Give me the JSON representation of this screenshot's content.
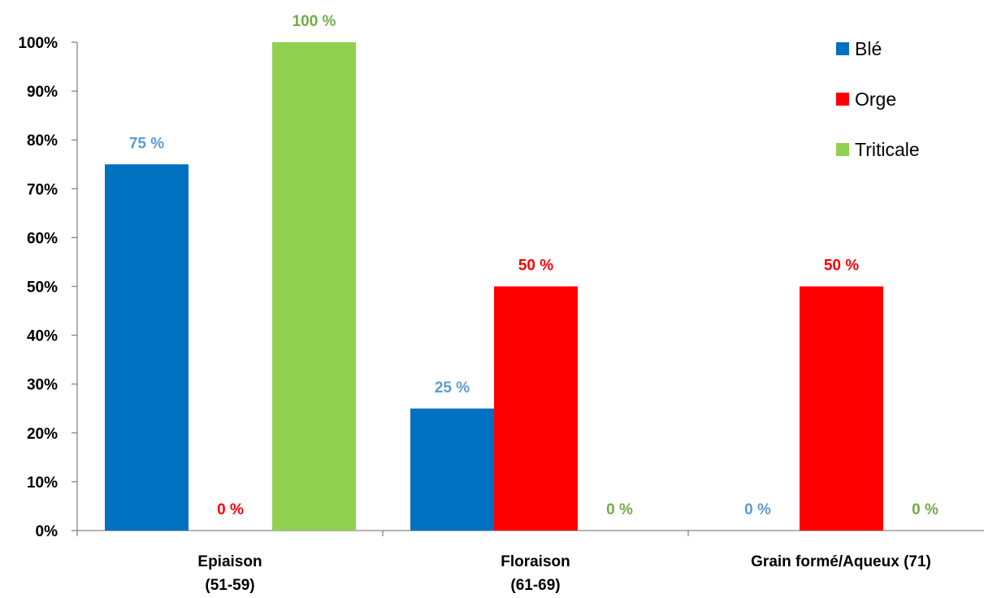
{
  "chart_data": {
    "type": "bar",
    "categories": [
      [
        "Epiaison",
        "(51-59)"
      ],
      [
        "Floraison",
        "(61-69)"
      ],
      [
        "Grain formé/Aqueux (71)"
      ]
    ],
    "series": [
      {
        "name": "Blé",
        "color": "#0070C0",
        "label_color": "#5B9BD5",
        "values": [
          75,
          25,
          0
        ],
        "labels": [
          "75 %",
          "25 %",
          "0 %"
        ]
      },
      {
        "name": "Orge",
        "color": "#FF0000",
        "label_color": "#FF0000",
        "values": [
          0,
          50,
          50
        ],
        "labels": [
          "0 %",
          "50 %",
          "50 %"
        ]
      },
      {
        "name": "Triticale",
        "color": "#92D050",
        "label_color": "#70AD47",
        "values": [
          100,
          0,
          0
        ],
        "labels": [
          "100 %",
          "0 %",
          "0 %"
        ]
      }
    ],
    "ylim": [
      0,
      100
    ],
    "yticks": [
      0,
      10,
      20,
      30,
      40,
      50,
      60,
      70,
      80,
      90,
      100
    ],
    "ytick_labels": [
      "0%",
      "10%",
      "20%",
      "30%",
      "40%",
      "50%",
      "60%",
      "70%",
      "80%",
      "90%",
      "100%"
    ],
    "grid": false,
    "legend_position": "top-right"
  }
}
